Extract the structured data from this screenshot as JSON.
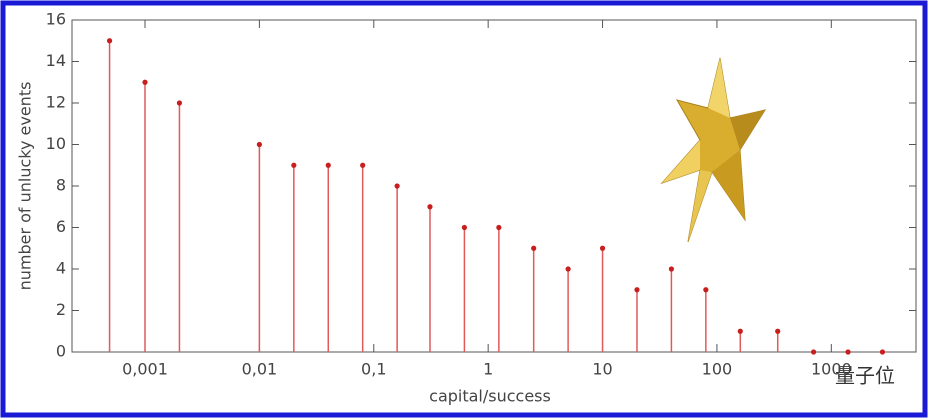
{
  "chart_data": {
    "type": "stem",
    "x_label": "capital/success",
    "y_label": "number of unlucky events",
    "x": [
      0.00049,
      0.001,
      0.002,
      0.01,
      0.02,
      0.04,
      0.08,
      0.16,
      0.31,
      0.62,
      1.24,
      2.5,
      5,
      10,
      20,
      40,
      80,
      160,
      340,
      700,
      1400,
      2800
    ],
    "values": [
      15,
      13,
      12,
      10,
      9,
      9,
      9,
      8,
      7,
      6,
      6,
      5,
      4,
      5,
      3,
      4,
      3,
      1,
      1,
      0,
      0,
      0
    ],
    "color": "#e05a5a",
    "x_log": true,
    "xlim": [
      0.00023,
      5500
    ],
    "xticks": [
      {
        "value": 0.001,
        "label": "0,001"
      },
      {
        "value": 0.01,
        "label": "0,01"
      },
      {
        "value": 0.1,
        "label": "0,1"
      },
      1,
      10,
      100,
      1000
    ],
    "ylim": [
      0,
      16
    ],
    "yticks": [
      0,
      2,
      4,
      6,
      8,
      10,
      12,
      14,
      16
    ],
    "watermark": "量子位"
  }
}
